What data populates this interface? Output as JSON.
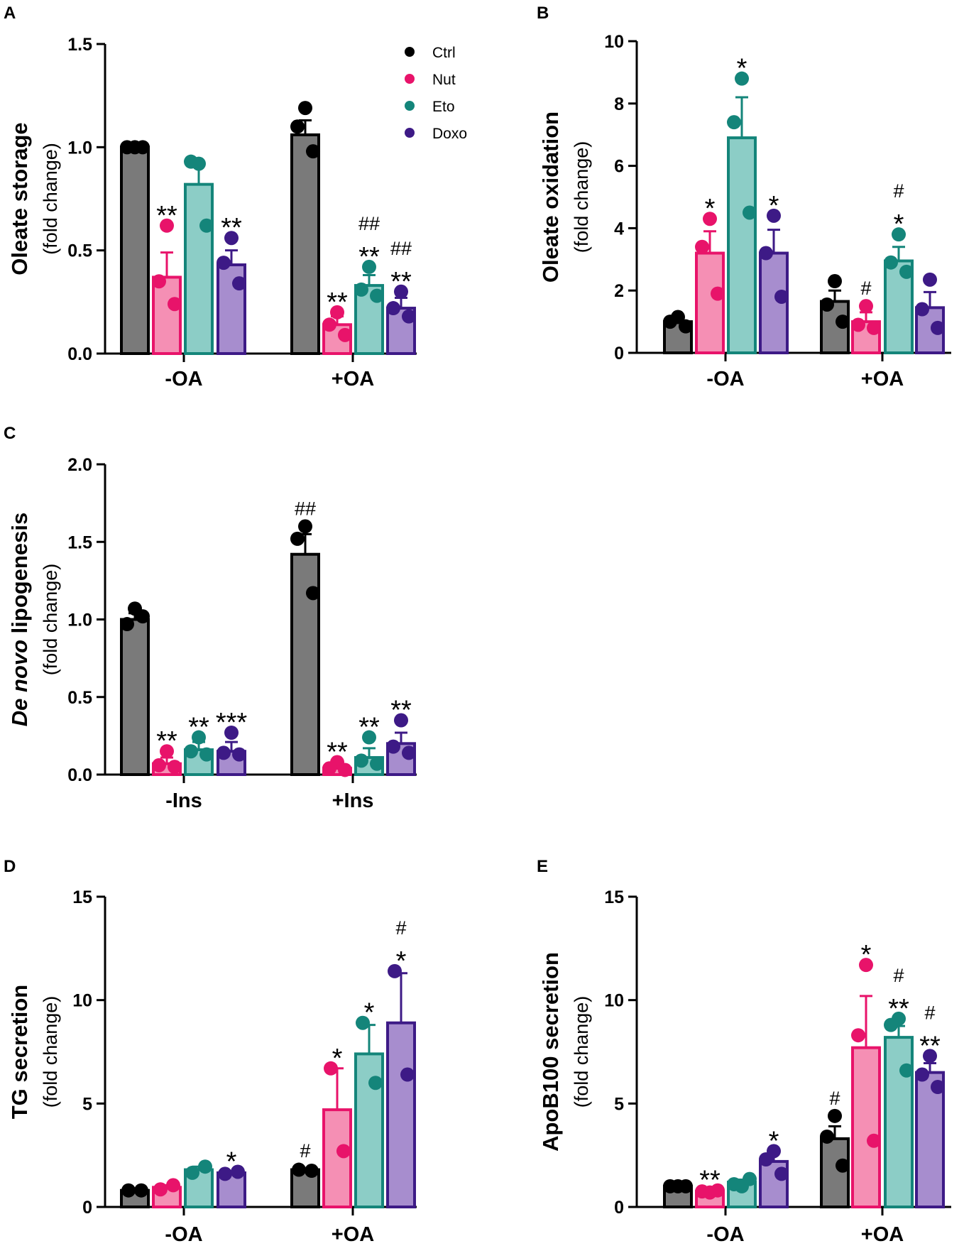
{
  "colors": {
    "Ctrl": {
      "fill": "#7a7a7a",
      "stroke": "#000000",
      "dot": "#000000"
    },
    "Nut": {
      "fill": "#f58fb4",
      "stroke": "#e8136a",
      "dot": "#e8136a"
    },
    "Eto": {
      "fill": "#8ccdc6",
      "stroke": "#14857a",
      "dot": "#14857a"
    },
    "Doxo": {
      "fill": "#a78dce",
      "stroke": "#3d1a86",
      "dot": "#3d1a86"
    }
  },
  "chart_data": [
    {
      "panel": "A",
      "type": "bar",
      "ylabel_bold": "Oleate storage",
      "ylabel_sub": "(fold change)",
      "categories": [
        "-OA",
        "+OA"
      ],
      "ylim": [
        0,
        1.5
      ],
      "yticks": [
        "0.0",
        "0.5",
        "1.0",
        "1.5"
      ],
      "legend": [
        "Ctrl",
        "Nut",
        "Eto",
        "Doxo"
      ],
      "series": [
        {
          "name": "Ctrl",
          "values": [
            1.0,
            1.06
          ],
          "errors": [
            0.005,
            0.07
          ],
          "points": [
            [
              1.0,
              1.0,
              1.0
            ],
            [
              1.19,
              1.1,
              0.98
            ]
          ],
          "annotations": [
            [],
            []
          ]
        },
        {
          "name": "Nut",
          "values": [
            0.37,
            0.14
          ],
          "errors": [
            0.12,
            0.04
          ],
          "points": [
            [
              0.62,
              0.35,
              0.24
            ],
            [
              0.2,
              0.14,
              0.09
            ]
          ],
          "annotations": [
            [
              "**"
            ],
            [
              "**"
            ]
          ]
        },
        {
          "name": "Eto",
          "values": [
            0.82,
            0.33
          ],
          "errors": [
            0.09,
            0.05
          ],
          "points": [
            [
              0.92,
              0.93,
              0.62
            ],
            [
              0.42,
              0.31,
              0.28
            ]
          ],
          "annotations": [
            [],
            [
              "##",
              "**"
            ]
          ]
        },
        {
          "name": "Doxo",
          "values": [
            0.43,
            0.22
          ],
          "errors": [
            0.07,
            0.05
          ],
          "points": [
            [
              0.56,
              0.44,
              0.34
            ],
            [
              0.3,
              0.22,
              0.18
            ]
          ],
          "annotations": [
            [
              "**"
            ],
            [
              "##",
              "**"
            ]
          ]
        }
      ]
    },
    {
      "panel": "B",
      "type": "bar",
      "ylabel_bold": "Oleate oxidation",
      "ylabel_sub": "(fold change)",
      "categories": [
        "-OA",
        "+OA"
      ],
      "ylim": [
        0,
        10
      ],
      "yticks": [
        "0",
        "2",
        "4",
        "6",
        "8",
        "10"
      ],
      "series": [
        {
          "name": "Ctrl",
          "values": [
            1.0,
            1.65
          ],
          "errors": [
            0.1,
            0.35
          ],
          "points": [
            [
              1.15,
              1.0,
              0.85
            ],
            [
              2.3,
              1.55,
              1.0
            ]
          ],
          "annotations": [
            [],
            []
          ]
        },
        {
          "name": "Nut",
          "values": [
            3.2,
            1.0
          ],
          "errors": [
            0.7,
            0.3
          ],
          "points": [
            [
              4.3,
              3.4,
              1.9
            ],
            [
              1.5,
              0.9,
              0.8
            ]
          ],
          "annotations": [
            [
              "*"
            ],
            [
              "#"
            ]
          ]
        },
        {
          "name": "Eto",
          "values": [
            6.9,
            2.95
          ],
          "errors": [
            1.3,
            0.45
          ],
          "points": [
            [
              8.8,
              7.4,
              4.5
            ],
            [
              3.8,
              2.9,
              2.6
            ]
          ],
          "annotations": [
            [
              "*"
            ],
            [
              "#",
              "*"
            ]
          ]
        },
        {
          "name": "Doxo",
          "values": [
            3.2,
            1.45
          ],
          "errors": [
            0.75,
            0.5
          ],
          "points": [
            [
              4.4,
              3.2,
              1.8
            ],
            [
              2.35,
              1.4,
              0.8
            ]
          ],
          "annotations": [
            [
              "*"
            ],
            []
          ]
        }
      ]
    },
    {
      "panel": "C",
      "type": "bar",
      "ylabel_italic": "De novo",
      "ylabel_bold": "lipogenesis",
      "ylabel_sub": "(fold change)",
      "categories": [
        "-Ins",
        "+Ins"
      ],
      "ylim": [
        0,
        2.0
      ],
      "yticks": [
        "0.0",
        "0.5",
        "1.0",
        "1.5",
        "2.0"
      ],
      "series": [
        {
          "name": "Ctrl",
          "values": [
            1.0,
            1.42
          ],
          "errors": [
            0.04,
            0.13
          ],
          "points": [
            [
              1.07,
              0.97,
              1.02
            ],
            [
              1.6,
              1.52,
              1.17
            ]
          ],
          "annotations": [
            [],
            [
              "##"
            ]
          ]
        },
        {
          "name": "Nut",
          "values": [
            0.07,
            0.04
          ],
          "errors": [
            0.04,
            0.02
          ],
          "points": [
            [
              0.15,
              0.06,
              0.05
            ],
            [
              0.08,
              0.04,
              0.03
            ]
          ],
          "annotations": [
            [
              "**"
            ],
            [
              "**"
            ]
          ]
        },
        {
          "name": "Eto",
          "values": [
            0.16,
            0.11
          ],
          "errors": [
            0.05,
            0.06
          ],
          "points": [
            [
              0.24,
              0.15,
              0.13
            ],
            [
              0.24,
              0.09,
              0.07
            ]
          ],
          "annotations": [
            [
              "**"
            ],
            [
              "**"
            ]
          ]
        },
        {
          "name": "Doxo",
          "values": [
            0.15,
            0.2
          ],
          "errors": [
            0.06,
            0.07
          ],
          "points": [
            [
              0.27,
              0.14,
              0.13
            ],
            [
              0.35,
              0.18,
              0.14
            ]
          ],
          "annotations": [
            [
              "***"
            ],
            [
              "**"
            ]
          ]
        }
      ]
    },
    {
      "panel": "D",
      "type": "bar",
      "ylabel_bold": "TG secretion",
      "ylabel_sub": "(fold change)",
      "categories": [
        "-OA",
        "+OA"
      ],
      "ylim": [
        0,
        15
      ],
      "yticks": [
        "0",
        "5",
        "10",
        "15"
      ],
      "series": [
        {
          "name": "Ctrl",
          "values": [
            0.8,
            1.8
          ],
          "errors": [
            0.05,
            0.05
          ],
          "points": [
            [
              0.8,
              0.8
            ],
            [
              1.8,
              1.75
            ]
          ],
          "annotations": [
            [],
            [
              "#"
            ]
          ]
        },
        {
          "name": "Nut",
          "values": [
            0.95,
            4.7
          ],
          "errors": [
            0.1,
            2.0
          ],
          "points": [
            [
              0.85,
              1.05
            ],
            [
              6.7,
              2.7
            ]
          ],
          "annotations": [
            [],
            [
              "*"
            ]
          ]
        },
        {
          "name": "Eto",
          "values": [
            1.8,
            7.4
          ],
          "errors": [
            0.15,
            1.4
          ],
          "points": [
            [
              1.65,
              1.95
            ],
            [
              8.9,
              6.0
            ]
          ],
          "annotations": [
            [],
            [
              "*"
            ]
          ]
        },
        {
          "name": "Doxo",
          "values": [
            1.65,
            8.9
          ],
          "errors": [
            0.05,
            2.4
          ],
          "points": [
            [
              1.6,
              1.7
            ],
            [
              11.4,
              6.4
            ]
          ],
          "annotations": [
            [
              "*"
            ],
            [
              "#",
              "*"
            ]
          ]
        }
      ]
    },
    {
      "panel": "E",
      "type": "bar",
      "ylabel_bold": "ApoB100 secretion",
      "ylabel_sub": "(fold change)",
      "categories": [
        "-OA",
        "+OA"
      ],
      "ylim": [
        0,
        15
      ],
      "yticks": [
        "0",
        "5",
        "10",
        "15"
      ],
      "series": [
        {
          "name": "Ctrl",
          "values": [
            1.0,
            3.3
          ],
          "errors": [
            0.02,
            0.6
          ],
          "points": [
            [
              1.0,
              1.0,
              1.0
            ],
            [
              4.4,
              3.4,
              2.0
            ]
          ],
          "annotations": [
            [],
            [
              "#"
            ]
          ]
        },
        {
          "name": "Nut",
          "values": [
            0.75,
            7.7
          ],
          "errors": [
            0.05,
            2.5
          ],
          "points": [
            [
              0.7,
              0.75,
              0.8
            ],
            [
              11.7,
              8.3,
              3.2
            ]
          ],
          "annotations": [
            [
              "**"
            ],
            [
              "*"
            ]
          ]
        },
        {
          "name": "Eto",
          "values": [
            1.2,
            8.2
          ],
          "errors": [
            0.12,
            0.55
          ],
          "points": [
            [
              1.0,
              1.1,
              1.35
            ],
            [
              9.1,
              8.8,
              6.6
            ]
          ],
          "annotations": [
            [],
            [
              "#",
              "**"
            ]
          ]
        },
        {
          "name": "Doxo",
          "values": [
            2.2,
            6.5
          ],
          "errors": [
            0.45,
            0.45
          ],
          "points": [
            [
              2.7,
              2.3,
              1.6
            ],
            [
              7.3,
              6.4,
              5.8
            ]
          ],
          "annotations": [
            [
              "*"
            ],
            [
              "#",
              "**"
            ]
          ]
        }
      ]
    }
  ]
}
